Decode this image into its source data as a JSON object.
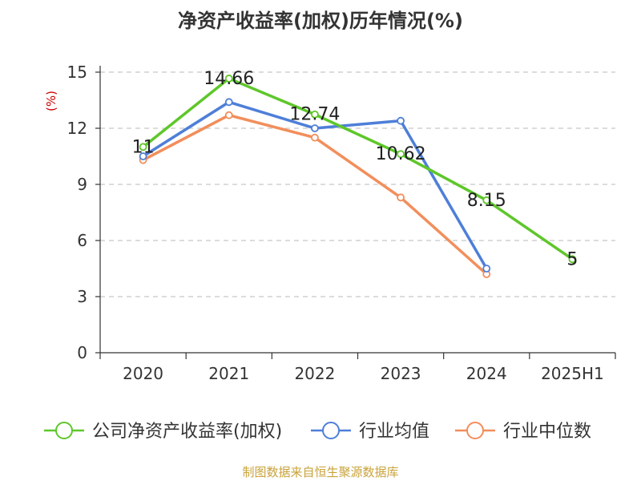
{
  "title": "净资产收益率(加权)历年情况(%)",
  "source": "制图数据来自恒生聚源数据库",
  "chart_data": {
    "type": "line",
    "categories": [
      "2020",
      "2021",
      "2022",
      "2023",
      "2024",
      "2025H1"
    ],
    "ylabel": "(%)",
    "ylim": [
      0,
      15
    ],
    "yticks": [
      0,
      3,
      6,
      9,
      12,
      15
    ],
    "grid": true,
    "legend_position": "bottom",
    "series": [
      {
        "name": "公司净资产收益率(加权)",
        "color": "#5ec72a",
        "values": [
          11,
          14.66,
          12.74,
          10.62,
          8.15,
          5
        ],
        "labels": [
          "11",
          "14.66",
          "12.74",
          "10.62",
          "8.15",
          "5"
        ]
      },
      {
        "name": "行业均值",
        "color": "#4e7fd8",
        "values": [
          10.5,
          13.4,
          12.0,
          12.4,
          4.5,
          null
        ]
      },
      {
        "name": "行业中位数",
        "color": "#f28e5b",
        "values": [
          10.3,
          12.7,
          11.5,
          8.3,
          4.2,
          null
        ]
      }
    ]
  }
}
